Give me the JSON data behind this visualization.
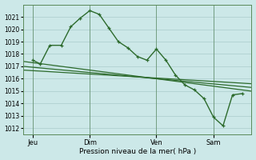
{
  "xlabel": "Pression niveau de la mer( hPa )",
  "bg_color": "#cce8e8",
  "grid_color": "#aacccc",
  "line_color": "#2d6b2d",
  "ylim": [
    1011.5,
    1022.0
  ],
  "yticks": [
    1012,
    1013,
    1014,
    1015,
    1016,
    1017,
    1018,
    1019,
    1020,
    1021
  ],
  "xtick_labels": [
    "Jeu",
    "Dim",
    "Ven",
    "Sam"
  ],
  "xtick_positions": [
    0.0,
    3.0,
    6.5,
    9.5
  ],
  "xlim": [
    -0.5,
    11.5
  ],
  "main_x": [
    0.0,
    0.4,
    0.9,
    1.5,
    2.0,
    2.5,
    3.0,
    3.5,
    4.0,
    4.5,
    5.0,
    5.5,
    6.0,
    6.5,
    7.0,
    7.5,
    8.0,
    8.5,
    9.0,
    9.5,
    10.0,
    10.5,
    11.0
  ],
  "main_y": [
    1017.5,
    1017.2,
    1018.7,
    1018.7,
    1020.2,
    1020.9,
    1021.5,
    1021.2,
    1020.1,
    1019.0,
    1018.5,
    1017.8,
    1017.5,
    1018.4,
    1017.5,
    1016.3,
    1015.5,
    1015.1,
    1014.4,
    1012.9,
    1012.2,
    1014.7,
    1014.8
  ],
  "trend1_x": [
    -0.5,
    11.5
  ],
  "trend1_y": [
    1017.4,
    1015.0
  ],
  "trend2_x": [
    -0.5,
    11.5
  ],
  "trend2_y": [
    1017.0,
    1015.3
  ],
  "trend3_x": [
    -0.5,
    11.5
  ],
  "trend3_y": [
    1016.7,
    1015.6
  ],
  "day_vlines": [
    0.0,
    3.0,
    6.5,
    9.5
  ]
}
